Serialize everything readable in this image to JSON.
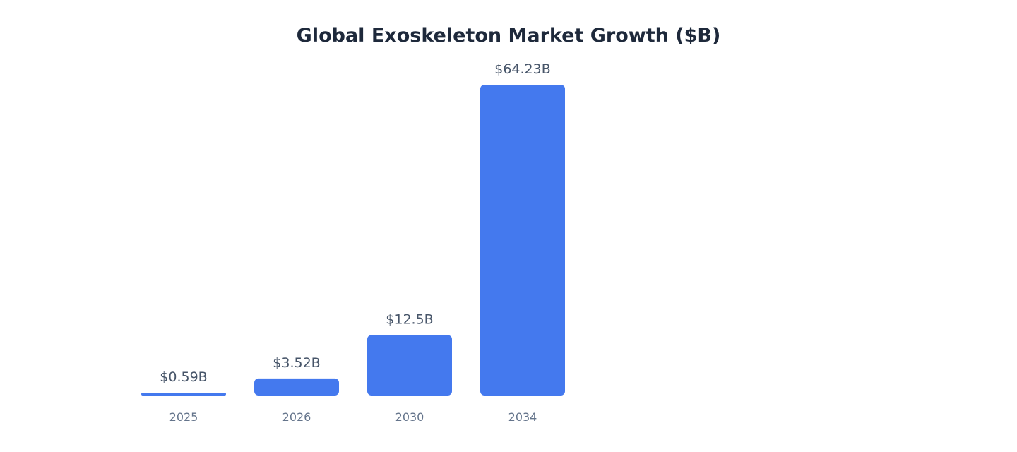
{
  "chart_data": {
    "type": "bar",
    "title": "Global Exoskeleton Market Growth ($B)",
    "xlabel": "",
    "ylabel": "",
    "categories": [
      "2025",
      "2026",
      "2030",
      "2034"
    ],
    "values": [
      0.59,
      3.52,
      12.5,
      64.23
    ],
    "value_labels": [
      "$0.59B",
      "$3.52B",
      "$12.5B",
      "$64.23B"
    ],
    "ylim": [
      0,
      64.23
    ],
    "grid": false,
    "legend": "none",
    "bar_color": "#4479ee"
  }
}
